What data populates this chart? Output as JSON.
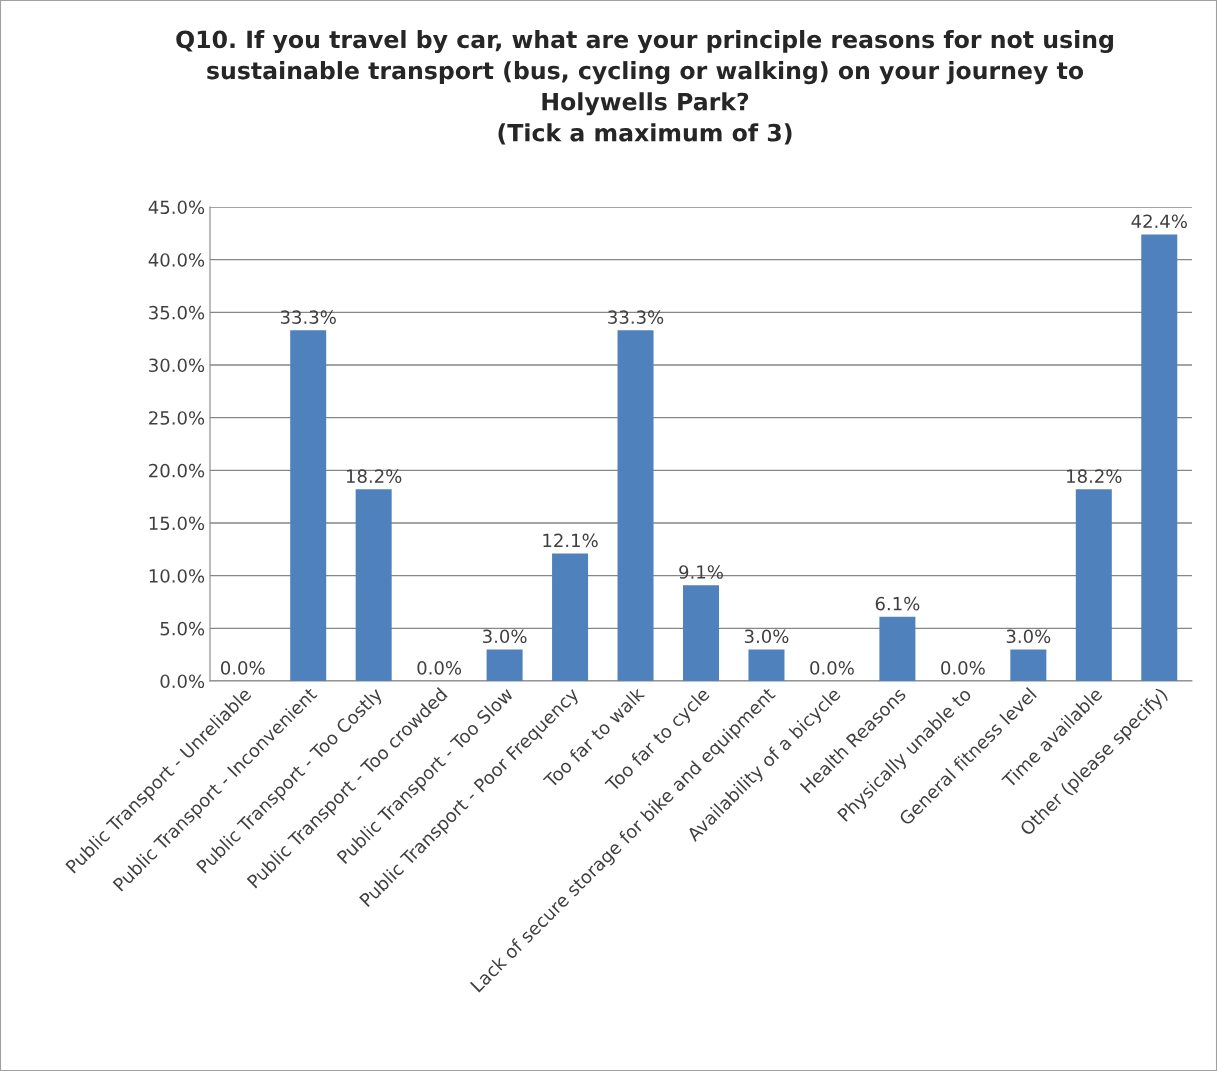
{
  "chart_data": {
    "type": "bar",
    "title": "Q10. If you travel by car, what are your principle reasons for not using\nsustainable transport (bus, cycling or walking) on your journey to\nHolywells Park?\n(Tick a maximum of 3)",
    "categories": [
      "Public Transport - Unreliable",
      "Public Transport - Inconvenient",
      "Public Transport - Too Costly",
      "Public Transport - Too crowded",
      "Public Transport - Too Slow",
      "Public Transport - Poor Frequency",
      "Too far to walk",
      "Too far to cycle",
      "Lack of secure storage for bike and equipment",
      "Availability of a bicycle",
      "Health Reasons",
      "Physically unable to",
      "General fitness level",
      "Time available",
      "Other (please specify)"
    ],
    "values": [
      0.0,
      33.3,
      18.2,
      0.0,
      3.0,
      12.1,
      33.3,
      9.1,
      3.0,
      0.0,
      6.1,
      0.0,
      3.0,
      18.2,
      42.4
    ],
    "value_labels": [
      "0.0%",
      "33.3%",
      "18.2%",
      "0.0%",
      "3.0%",
      "12.1%",
      "33.3%",
      "9.1%",
      "3.0%",
      "0.0%",
      "6.1%",
      "0.0%",
      "3.0%",
      "18.2%",
      "42.4%"
    ],
    "color": "#4f81bd",
    "ylim": [
      0,
      45
    ],
    "yticks": [
      {
        "value": 0,
        "label": "0.0%"
      },
      {
        "value": 5,
        "label": "5.0%"
      },
      {
        "value": 10,
        "label": "10.0%"
      },
      {
        "value": 15,
        "label": "15.0%"
      },
      {
        "value": 20,
        "label": "20.0%"
      },
      {
        "value": 25,
        "label": "25.0%"
      },
      {
        "value": 30,
        "label": "30.0%"
      },
      {
        "value": 35,
        "label": "35.0%"
      },
      {
        "value": 40,
        "label": "40.0%"
      },
      {
        "value": 45,
        "label": "45.0%"
      }
    ],
    "grid": "y",
    "legend": false
  }
}
